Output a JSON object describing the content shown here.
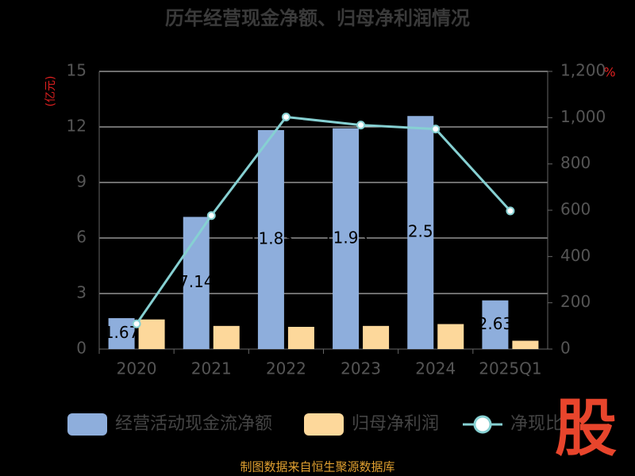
{
  "chart_data": {
    "type": "bar-line",
    "title": "历年经营现金净额、归母净利润情况",
    "y_axis_label": "(亿元)",
    "y2_axis_label": "%",
    "categories": [
      "2020",
      "2021",
      "2022",
      "2023",
      "2024",
      "2025Q1"
    ],
    "series": [
      {
        "name": "经营活动现金流净额",
        "type": "bar",
        "color": "#8eaedc",
        "values": [
          1.67,
          7.14,
          11.83,
          11.93,
          12.59,
          2.63
        ]
      },
      {
        "name": "归母净利润",
        "type": "bar",
        "color": "#fdd89b",
        "values": [
          1.6,
          1.25,
          1.2,
          1.25,
          1.35,
          0.45
        ]
      },
      {
        "name": "净现比",
        "type": "line",
        "axis": "y2",
        "color": "#86d0d2",
        "values": [
          109,
          577,
          1003,
          968,
          951,
          597
        ]
      }
    ],
    "ylim": [
      0,
      15
    ],
    "yticks": [
      0,
      3,
      6,
      9,
      12,
      15
    ],
    "y2lim": [
      0,
      1200
    ],
    "y2ticks": [
      0,
      200,
      400,
      600,
      800,
      {
        "value": 1000,
        "label": "1,000"
      },
      {
        "value": 1200,
        "label": "1,200"
      }
    ],
    "grid": true,
    "legend": "bottom",
    "footer": "制图数据来自恒生聚源数据库",
    "logo": "股"
  }
}
